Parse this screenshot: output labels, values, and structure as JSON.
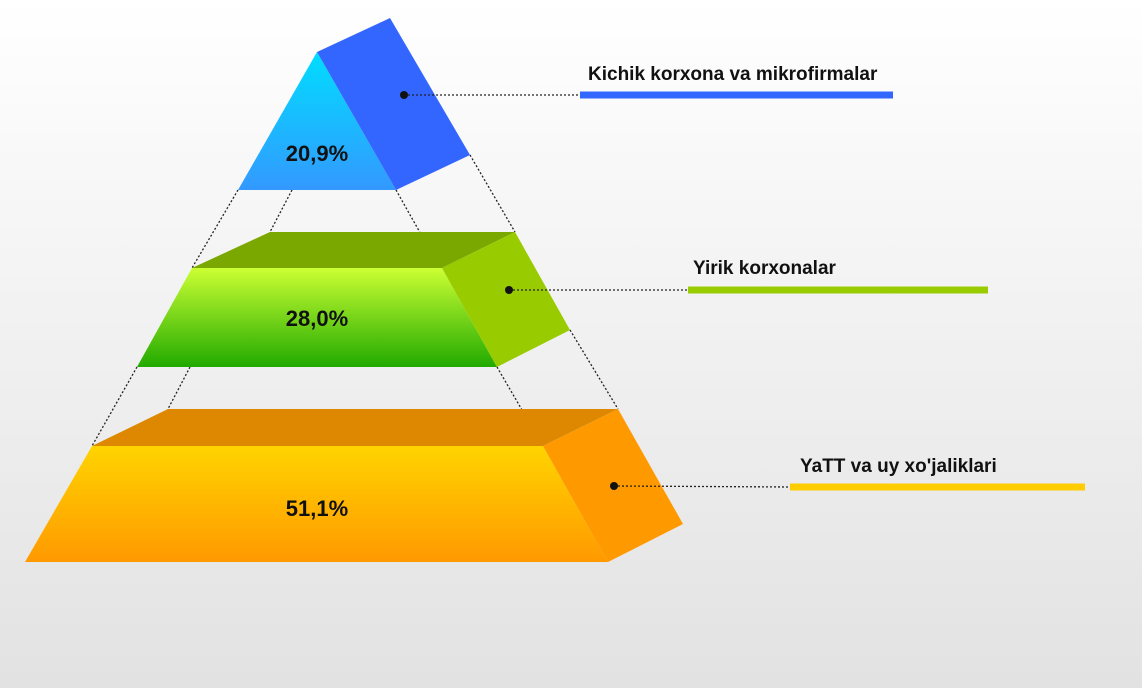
{
  "chart_data": {
    "type": "pyramid",
    "categories": [
      "Kichik korxona va mikrofirmalar",
      "Yirik korxonalar",
      "YaTT va uy xo'jaliklari"
    ],
    "values": [
      20.9,
      28.0,
      51.1
    ],
    "value_labels": [
      "20,9%",
      "28,0%",
      "51,1%"
    ],
    "colors": [
      "#3366ff",
      "#99cc00",
      "#ffcc00"
    ]
  }
}
